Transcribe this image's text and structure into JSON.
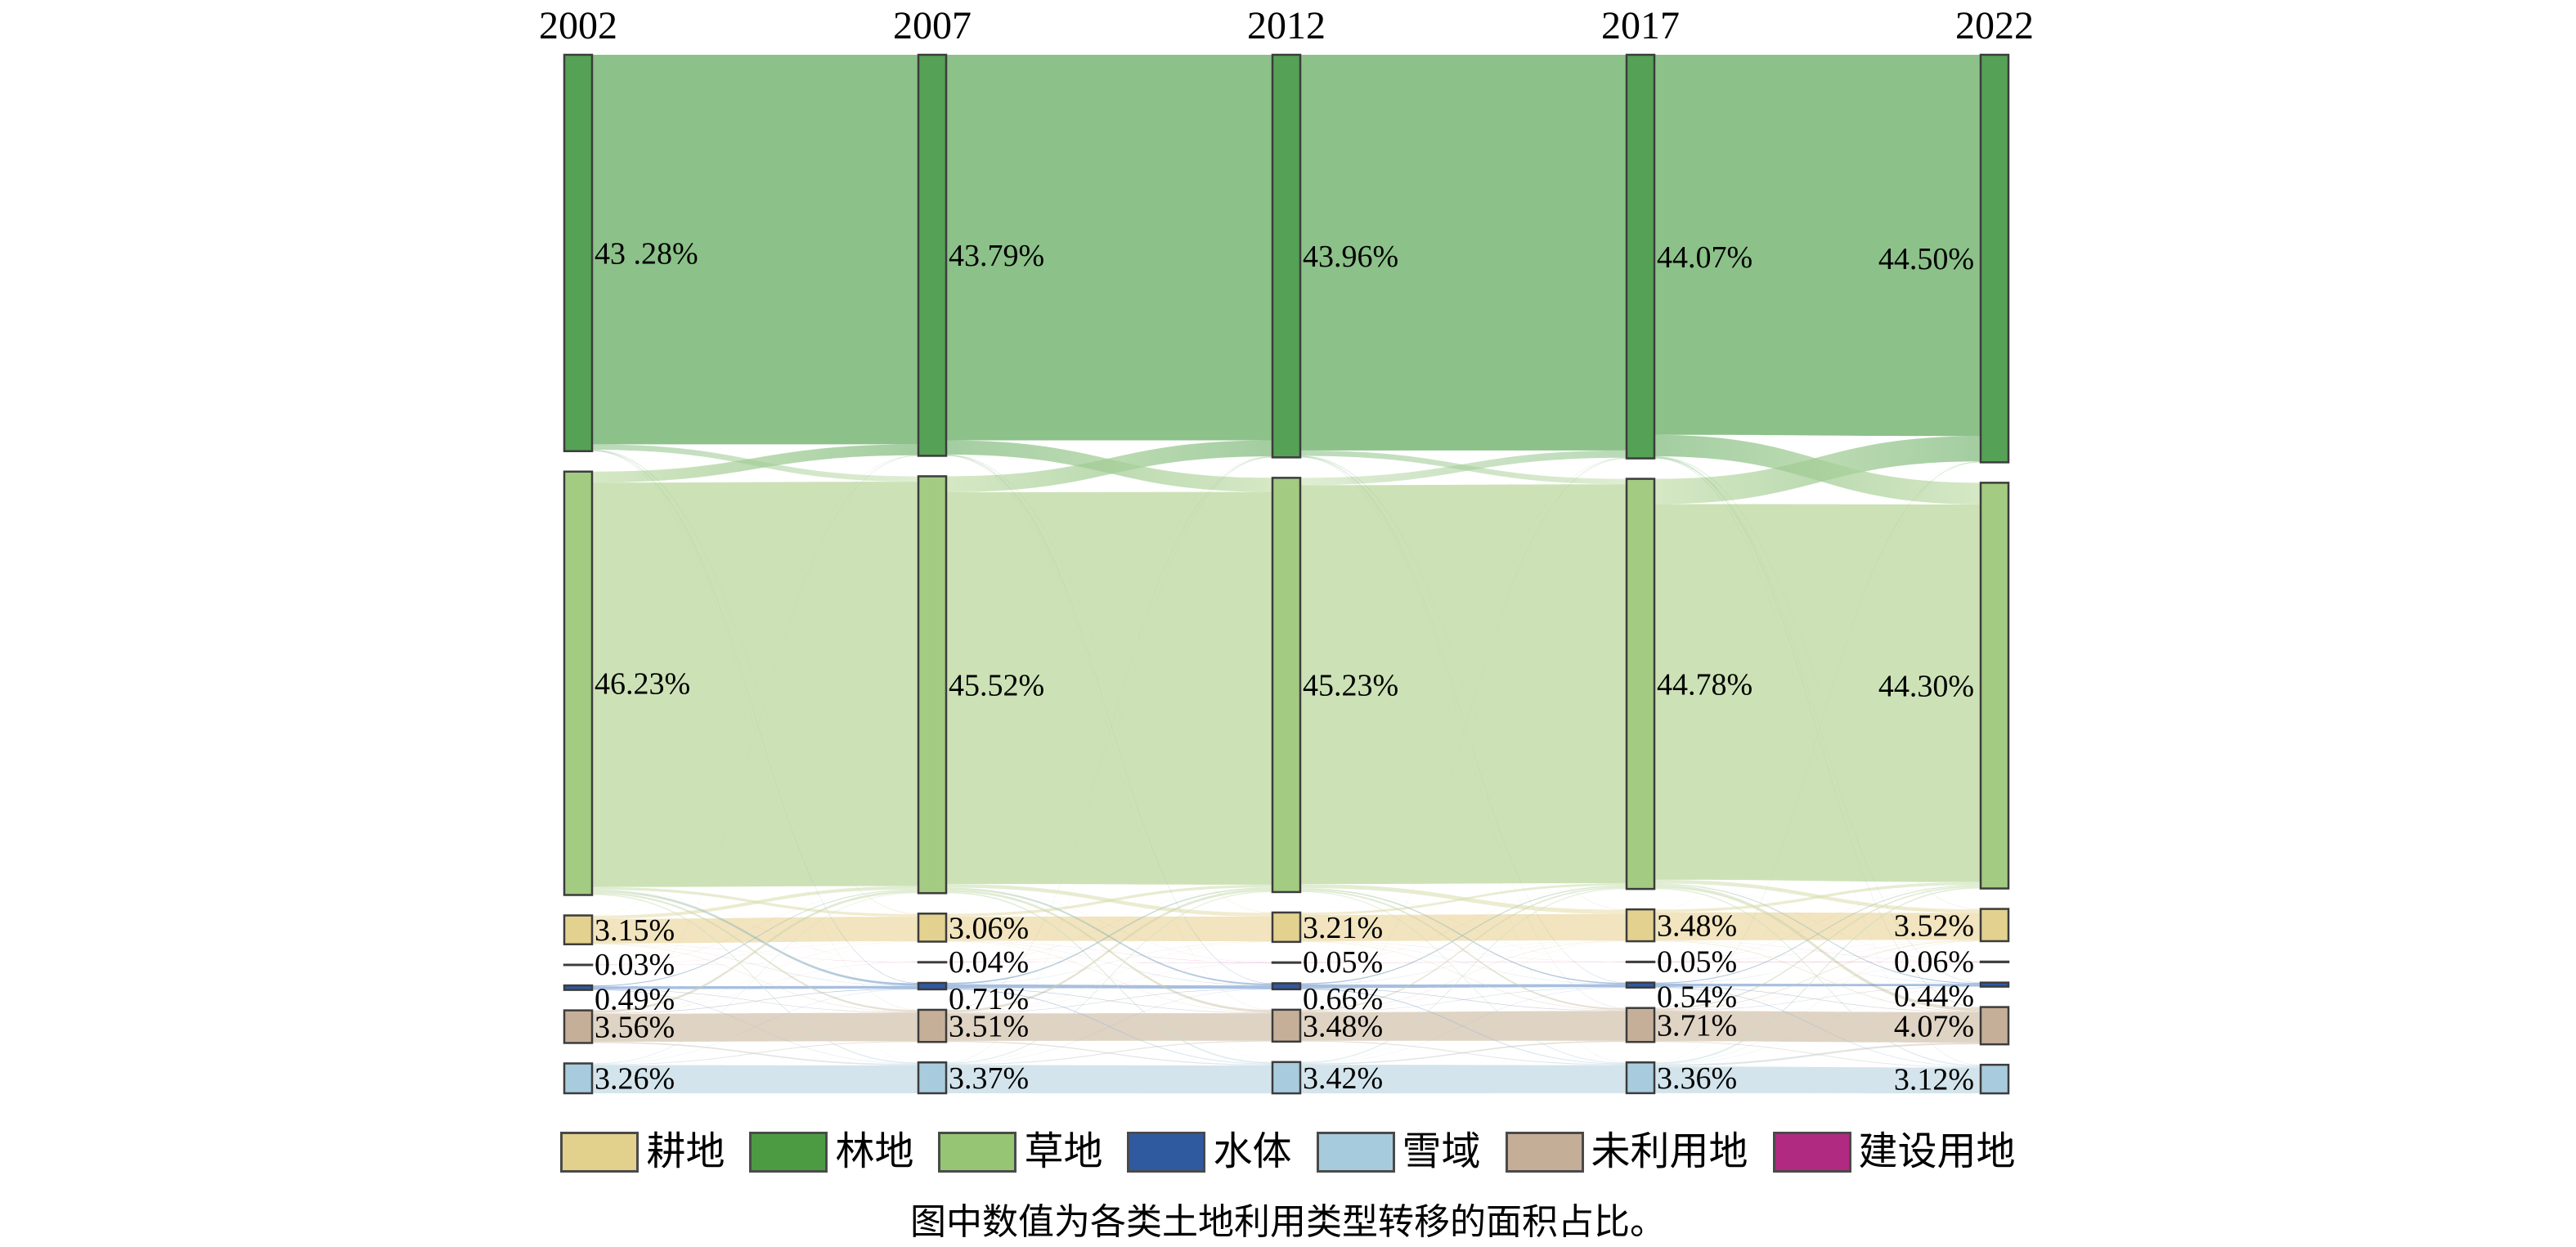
{
  "figure": {
    "caption": "图中数值为各类土地利用类型转移的面积占比。"
  },
  "legend": {
    "items": [
      {
        "label": "耕地",
        "color": "#e2d08d"
      },
      {
        "label": "林地",
        "color": "#4c9b43"
      },
      {
        "label": "草地",
        "color": "#96c673"
      },
      {
        "label": "水体",
        "color": "#2f5aa0"
      },
      {
        "label": "雪域",
        "color": "#a6cbdc"
      },
      {
        "label": "未利用地",
        "color": "#c5ae98"
      },
      {
        "label": "建设用地",
        "color": "#b12a82"
      }
    ]
  },
  "chart_data": {
    "type": "sankey",
    "title": "",
    "unit": "percent of total area",
    "years": [
      "2002",
      "2007",
      "2012",
      "2017",
      "2022"
    ],
    "categories": [
      {
        "key": "forest",
        "label": "林地",
        "node_color": "#55a156",
        "flow_color": "#7fba7c"
      },
      {
        "key": "grass",
        "label": "草地",
        "node_color": "#a3cb82",
        "flow_color": "#c6dfae"
      },
      {
        "key": "crop",
        "label": "耕地",
        "node_color": "#e3d18f",
        "flow_color": "#ebdaa5"
      },
      {
        "key": "constr",
        "label": "建设用地",
        "node_color": "#a82a78",
        "flow_color": "#cb3d93"
      },
      {
        "key": "water",
        "label": "水体",
        "node_color": "#2f5aa2",
        "flow_color": "#5e8bc6"
      },
      {
        "key": "unused",
        "label": "未利用地",
        "node_color": "#c6af99",
        "flow_color": "#d3c2ad"
      },
      {
        "key": "snow",
        "label": "雪域",
        "node_color": "#a8ccdd",
        "flow_color": "#c2d9e5"
      }
    ],
    "node_values": {
      "2002": [
        43.28,
        46.23,
        3.15,
        0.03,
        0.49,
        3.56,
        3.26
      ],
      "2007": [
        43.79,
        45.52,
        3.06,
        0.04,
        0.71,
        3.51,
        3.37
      ],
      "2012": [
        43.96,
        45.23,
        3.21,
        0.05,
        0.66,
        3.48,
        3.42
      ],
      "2017": [
        44.07,
        44.78,
        3.48,
        0.05,
        0.54,
        3.71,
        3.36
      ],
      "2022": [
        44.5,
        44.3,
        3.52,
        0.06,
        0.44,
        4.07,
        3.12
      ]
    },
    "node_labels": {
      "2002": [
        "43 .28%",
        "46.23%",
        "3.15%",
        "0.03%",
        "0.49%",
        "3.56%",
        "3.26%"
      ],
      "2007": [
        "43.79%",
        "45.52%",
        "3.06%",
        "0.04%",
        "0.71%",
        "3.51%",
        "3.37%"
      ],
      "2012": [
        "43.96%",
        "45.23%",
        "3.21%",
        "0.05%",
        "0.66%",
        "3.48%",
        "3.42%"
      ],
      "2017": [
        "44.07%",
        "44.78%",
        "3.48%",
        "0.05%",
        "0.54%",
        "3.71%",
        "3.36%"
      ],
      "2022": [
        "44.50%",
        "44.30%",
        "3.52%",
        "0.06%",
        "0.44%",
        "4.07%",
        "3.12%"
      ]
    },
    "links_estimated": [
      {
        "from_year": "2002",
        "to_year": "2007",
        "flows": [
          [
            "forest",
            "forest",
            42.53
          ],
          [
            "forest",
            "grass",
            0.6
          ],
          [
            "forest",
            "crop",
            0.05
          ],
          [
            "forest",
            "water",
            0.05
          ],
          [
            "forest",
            "unused",
            0.03
          ],
          [
            "forest",
            "snow",
            0.02
          ],
          [
            "grass",
            "forest",
            1.2
          ],
          [
            "grass",
            "grass",
            44.15
          ],
          [
            "grass",
            "crop",
            0.3
          ],
          [
            "grass",
            "constr",
            0.01
          ],
          [
            "grass",
            "water",
            0.25
          ],
          [
            "grass",
            "unused",
            0.2
          ],
          [
            "grass",
            "snow",
            0.12
          ],
          [
            "crop",
            "forest",
            0.02
          ],
          [
            "crop",
            "grass",
            0.35
          ],
          [
            "crop",
            "crop",
            2.68
          ],
          [
            "crop",
            "constr",
            0.02
          ],
          [
            "crop",
            "water",
            0.03
          ],
          [
            "crop",
            "unused",
            0.05
          ],
          [
            "constr",
            "grass",
            0.01
          ],
          [
            "constr",
            "crop",
            0.01
          ],
          [
            "constr",
            "constr",
            0.01
          ],
          [
            "water",
            "grass",
            0.1
          ],
          [
            "water",
            "water",
            0.3
          ],
          [
            "water",
            "unused",
            0.05
          ],
          [
            "water",
            "snow",
            0.04
          ],
          [
            "unused",
            "forest",
            0.03
          ],
          [
            "unused",
            "grass",
            0.25
          ],
          [
            "unused",
            "crop",
            0.02
          ],
          [
            "unused",
            "constr",
            0.01
          ],
          [
            "unused",
            "water",
            0.06
          ],
          [
            "unused",
            "unused",
            3.1
          ],
          [
            "unused",
            "snow",
            0.14
          ],
          [
            "snow",
            "forest",
            0.01
          ],
          [
            "snow",
            "grass",
            0.06
          ],
          [
            "snow",
            "crop",
            0.02
          ],
          [
            "snow",
            "water",
            0.02
          ],
          [
            "snow",
            "unused",
            0.08
          ],
          [
            "snow",
            "snow",
            3.05
          ]
        ]
      },
      {
        "from_year": "2007",
        "to_year": "2012",
        "flows": [
          [
            "forest",
            "forest",
            42.1
          ],
          [
            "forest",
            "grass",
            1.55
          ],
          [
            "forest",
            "crop",
            0.04
          ],
          [
            "forest",
            "water",
            0.05
          ],
          [
            "forest",
            "unused",
            0.03
          ],
          [
            "forest",
            "snow",
            0.02
          ],
          [
            "grass",
            "forest",
            1.75
          ],
          [
            "grass",
            "grass",
            43.0
          ],
          [
            "grass",
            "crop",
            0.4
          ],
          [
            "grass",
            "constr",
            0.01
          ],
          [
            "grass",
            "water",
            0.2
          ],
          [
            "grass",
            "unused",
            0.25
          ],
          [
            "grass",
            "snow",
            0.15
          ],
          [
            "crop",
            "forest",
            0.02
          ],
          [
            "crop",
            "grass",
            0.3
          ],
          [
            "crop",
            "crop",
            2.65
          ],
          [
            "crop",
            "constr",
            0.02
          ],
          [
            "crop",
            "water",
            0.03
          ],
          [
            "crop",
            "unused",
            0.04
          ],
          [
            "constr",
            "grass",
            0.01
          ],
          [
            "constr",
            "crop",
            0.01
          ],
          [
            "constr",
            "constr",
            0.02
          ],
          [
            "water",
            "crop",
            0.02
          ],
          [
            "water",
            "grass",
            0.15
          ],
          [
            "water",
            "water",
            0.4
          ],
          [
            "water",
            "unused",
            0.06
          ],
          [
            "water",
            "snow",
            0.08
          ],
          [
            "unused",
            "forest",
            0.05
          ],
          [
            "unused",
            "grass",
            0.25
          ],
          [
            "unused",
            "crop",
            0.03
          ],
          [
            "unused",
            "constr",
            0.01
          ],
          [
            "unused",
            "water",
            0.05
          ],
          [
            "unused",
            "unused",
            3.0
          ],
          [
            "unused",
            "snow",
            0.12
          ],
          [
            "snow",
            "forest",
            0.04
          ],
          [
            "snow",
            "grass",
            0.1
          ],
          [
            "snow",
            "crop",
            0.02
          ],
          [
            "snow",
            "water",
            0.03
          ],
          [
            "snow",
            "unused",
            0.1
          ],
          [
            "snow",
            "snow",
            3.05
          ]
        ]
      },
      {
        "from_year": "2012",
        "to_year": "2017",
        "flows": [
          [
            "forest",
            "forest",
            43.2
          ],
          [
            "forest",
            "grass",
            0.6
          ],
          [
            "forest",
            "crop",
            0.05
          ],
          [
            "forest",
            "water",
            0.04
          ],
          [
            "forest",
            "unused",
            0.04
          ],
          [
            "forest",
            "snow",
            0.03
          ],
          [
            "grass",
            "forest",
            0.8
          ],
          [
            "grass",
            "grass",
            43.55
          ],
          [
            "grass",
            "crop",
            0.45
          ],
          [
            "grass",
            "constr",
            0.01
          ],
          [
            "grass",
            "water",
            0.15
          ],
          [
            "grass",
            "unused",
            0.18
          ],
          [
            "grass",
            "snow",
            0.09
          ],
          [
            "crop",
            "forest",
            0.02
          ],
          [
            "crop",
            "grass",
            0.25
          ],
          [
            "crop",
            "crop",
            2.85
          ],
          [
            "crop",
            "constr",
            0.02
          ],
          [
            "crop",
            "water",
            0.02
          ],
          [
            "crop",
            "unused",
            0.05
          ],
          [
            "constr",
            "grass",
            0.01
          ],
          [
            "constr",
            "crop",
            0.01
          ],
          [
            "constr",
            "constr",
            0.03
          ],
          [
            "water",
            "crop",
            0.02
          ],
          [
            "water",
            "grass",
            0.12
          ],
          [
            "water",
            "water",
            0.38
          ],
          [
            "water",
            "unused",
            0.06
          ],
          [
            "water",
            "snow",
            0.08
          ],
          [
            "unused",
            "forest",
            0.04
          ],
          [
            "unused",
            "grass",
            0.15
          ],
          [
            "unused",
            "crop",
            0.04
          ],
          [
            "unused",
            "constr",
            0.01
          ],
          [
            "unused",
            "water",
            0.04
          ],
          [
            "unused",
            "unused",
            3.25
          ],
          [
            "unused",
            "snow",
            0.1
          ],
          [
            "snow",
            "forest",
            0.01
          ],
          [
            "snow",
            "grass",
            0.1
          ],
          [
            "snow",
            "crop",
            0.02
          ],
          [
            "snow",
            "water",
            0.02
          ],
          [
            "snow",
            "unused",
            0.14
          ],
          [
            "snow",
            "snow",
            3.05
          ]
        ]
      },
      {
        "from_year": "2017",
        "to_year": "2022",
        "flows": [
          [
            "forest",
            "forest",
            41.5
          ],
          [
            "forest",
            "grass",
            2.35
          ],
          [
            "forest",
            "crop",
            0.05
          ],
          [
            "forest",
            "water",
            0.04
          ],
          [
            "forest",
            "unused",
            0.08
          ],
          [
            "forest",
            "snow",
            0.05
          ],
          [
            "grass",
            "forest",
            2.75
          ],
          [
            "grass",
            "grass",
            40.95
          ],
          [
            "grass",
            "crop",
            0.4
          ],
          [
            "grass",
            "constr",
            0.01
          ],
          [
            "grass",
            "water",
            0.12
          ],
          [
            "grass",
            "unused",
            0.35
          ],
          [
            "grass",
            "snow",
            0.12
          ],
          [
            "crop",
            "forest",
            0.02
          ],
          [
            "crop",
            "grass",
            0.3
          ],
          [
            "crop",
            "crop",
            3.05
          ],
          [
            "crop",
            "constr",
            0.02
          ],
          [
            "crop",
            "water",
            0.02
          ],
          [
            "crop",
            "unused",
            0.07
          ],
          [
            "constr",
            "grass",
            0.01
          ],
          [
            "constr",
            "crop",
            0.01
          ],
          [
            "constr",
            "constr",
            0.03
          ],
          [
            "water",
            "crop",
            0.02
          ],
          [
            "water",
            "grass",
            0.1
          ],
          [
            "water",
            "water",
            0.3
          ],
          [
            "water",
            "unused",
            0.06
          ],
          [
            "water",
            "snow",
            0.06
          ],
          [
            "unused",
            "forest",
            0.06
          ],
          [
            "unused",
            "grass",
            0.14
          ],
          [
            "unused",
            "crop",
            0.08
          ],
          [
            "unused",
            "constr",
            0.01
          ],
          [
            "unused",
            "water",
            0.04
          ],
          [
            "unused",
            "unused",
            3.3
          ],
          [
            "unused",
            "snow",
            0.08
          ],
          [
            "snow",
            "forest",
            0.02
          ],
          [
            "snow",
            "grass",
            0.15
          ],
          [
            "snow",
            "crop",
            0.04
          ],
          [
            "snow",
            "water",
            0.02
          ],
          [
            "snow",
            "unused",
            0.2
          ],
          [
            "snow",
            "snow",
            2.85
          ]
        ]
      }
    ]
  }
}
